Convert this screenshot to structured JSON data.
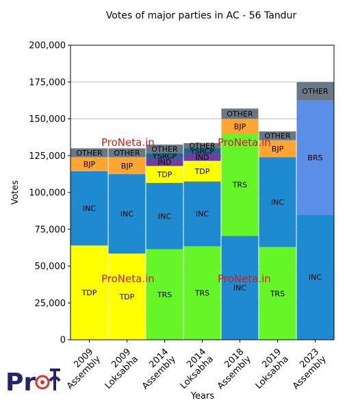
{
  "chart_data": {
    "type": "bar",
    "stacked": true,
    "title": "Votes of major parties in AC - 56 Tandur",
    "xlabel": "Years",
    "ylabel": "Votes",
    "ylim": [
      0,
      200000
    ],
    "yticks": [
      0,
      25000,
      50000,
      75000,
      100000,
      125000,
      150000,
      175000,
      200000
    ],
    "ytick_labels": [
      "0",
      "25,000",
      "50,000",
      "75,000",
      "100,000",
      "125,000",
      "150,000",
      "175,000",
      "200,000"
    ],
    "grid": "horizontal",
    "categories": [
      [
        "2009",
        "Assembly"
      ],
      [
        "2009",
        "Loksabha"
      ],
      [
        "2014",
        "Assembly"
      ],
      [
        "2014",
        "Loksabha"
      ],
      [
        "2018",
        "Assembly"
      ],
      [
        "2019",
        "Loksabha"
      ],
      [
        "2023",
        "Assembly"
      ]
    ],
    "bars": [
      [
        {
          "party": "TDP",
          "value": 64000,
          "color": "#ffff00"
        },
        {
          "party": "INC",
          "value": 50500,
          "color": "#1e8bd0"
        },
        {
          "party": "BJP",
          "value": 9500,
          "color": "#ffa533"
        },
        {
          "party": "OTHER",
          "value": 6000,
          "color": "#687885"
        }
      ],
      [
        {
          "party": "TDP",
          "value": 58500,
          "color": "#ffff00"
        },
        {
          "party": "INC",
          "value": 54000,
          "color": "#1e8bd0"
        },
        {
          "party": "BJP",
          "value": 11500,
          "color": "#ffa533"
        },
        {
          "party": "OTHER",
          "value": 6000,
          "color": "#687885"
        }
      ],
      [
        {
          "party": "TRS",
          "value": 61500,
          "color": "#66f526"
        },
        {
          "party": "INC",
          "value": 45000,
          "color": "#1e8bd0"
        },
        {
          "party": "TDP",
          "value": 11500,
          "color": "#ffff00"
        },
        {
          "party": "IND",
          "value": 5500,
          "color": "#6c3fa0"
        },
        {
          "party": "YSRCP",
          "value": 3000,
          "color": "#1a6a8c"
        },
        {
          "party": "OTHER",
          "value": 6000,
          "color": "#687885"
        }
      ],
      [
        {
          "party": "TRS",
          "value": 63500,
          "color": "#66f526"
        },
        {
          "party": "INC",
          "value": 44000,
          "color": "#1e8bd0"
        },
        {
          "party": "TDP",
          "value": 14000,
          "color": "#ffff00"
        },
        {
          "party": "IND",
          "value": 5000,
          "color": "#6c3fa0"
        },
        {
          "party": "YSRCP",
          "value": 3500,
          "color": "#1a6a8c"
        },
        {
          "party": "OTHER",
          "value": 3500,
          "color": "#687885"
        }
      ],
      [
        {
          "party": "INC",
          "value": 70500,
          "color": "#1e8bd0"
        },
        {
          "party": "TRS",
          "value": 69500,
          "color": "#66f526"
        },
        {
          "party": "BJP",
          "value": 10000,
          "color": "#ffa533"
        },
        {
          "party": "OTHER",
          "value": 7000,
          "color": "#687885"
        }
      ],
      [
        {
          "party": "TRS",
          "value": 63000,
          "color": "#66f526"
        },
        {
          "party": "INC",
          "value": 61000,
          "color": "#1e8bd0"
        },
        {
          "party": "BJP",
          "value": 11500,
          "color": "#ffa533"
        },
        {
          "party": "OTHER",
          "value": 6000,
          "color": "#687885"
        }
      ],
      [
        {
          "party": "INC",
          "value": 85000,
          "color": "#1e8bd0"
        },
        {
          "party": "BRS",
          "value": 77500,
          "color": "#5b8ee6"
        },
        {
          "party": "OTHER",
          "value": 12500,
          "color": "#687885"
        }
      ]
    ]
  },
  "watermark": {
    "text": "ProNeta.in",
    "color": "#cc1f1f"
  },
  "logo": {
    "text": "Proनेता",
    "color": "#1f2370",
    "accent": "#e0302a"
  }
}
